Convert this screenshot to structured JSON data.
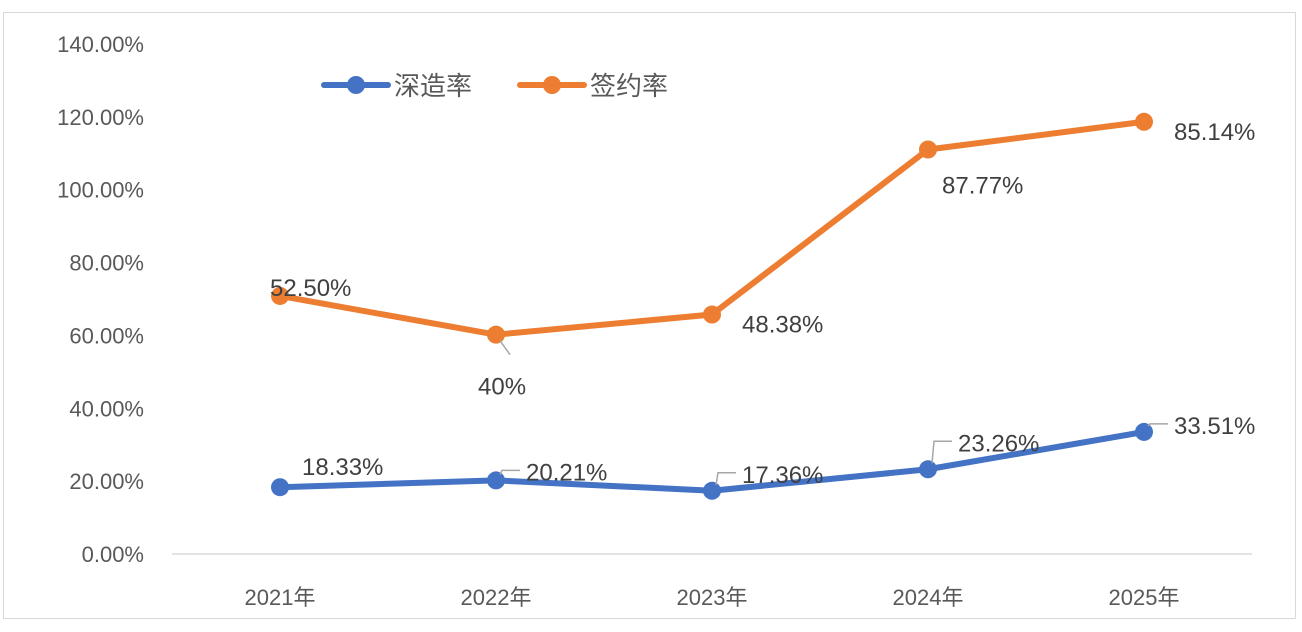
{
  "chart_data": {
    "type": "line",
    "stacked": true,
    "title": "",
    "xlabel": "",
    "ylabel": "",
    "categories": [
      "2021年",
      "2022年",
      "2023年",
      "2024年",
      "2025年"
    ],
    "ylim": [
      0,
      140
    ],
    "yticks": [
      "0.00%",
      "20.00%",
      "40.00%",
      "60.00%",
      "80.00%",
      "100.00%",
      "120.00%",
      "140.00%"
    ],
    "grid": false,
    "legend_position": "top-left",
    "series": [
      {
        "name": "深造率",
        "color": "#4472C4",
        "values": [
          18.33,
          20.21,
          17.36,
          23.26,
          33.51
        ],
        "labels": [
          "18.33%",
          "20.21%",
          "17.36%",
          "23.26%",
          "33.51%"
        ]
      },
      {
        "name": "签约率",
        "color": "#ED7D31",
        "values": [
          52.5,
          40,
          48.38,
          87.77,
          85.14
        ],
        "labels": [
          "52.50%",
          "40%",
          "48.38%",
          "87.77%",
          "85.14%"
        ]
      }
    ]
  }
}
